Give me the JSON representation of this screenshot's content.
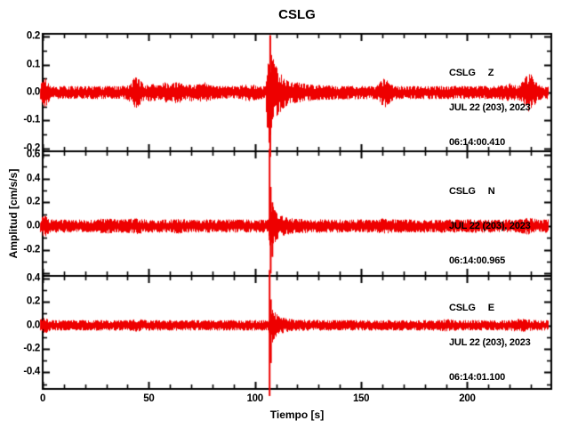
{
  "chart_data": {
    "type": "line",
    "subtype": "seismogram-3-component",
    "title": "CSLG",
    "xlabel": "Tiempo [s]",
    "ylabel": "Amplitud [cm/s/s]",
    "trace_color": "#ee0000",
    "axis_color": "#000000",
    "x_range": [
      0,
      239.6
    ],
    "x_ticks_major": [
      0,
      50,
      100,
      150,
      200
    ],
    "x_tick_labels": [
      "0",
      "50",
      "100",
      "150",
      "200"
    ],
    "x_minor_step": 10,
    "grid": false,
    "panels": [
      {
        "id": "Z",
        "station": "CSLG",
        "channel": "Z",
        "date_line": "JUL 22 (203), 2023",
        "time_line": "06:14:00.410",
        "ylim": [
          -0.21,
          0.21
        ],
        "y_major_step": 0.1,
        "y_minor_step": 0.05,
        "y_tick_values": [
          0.2,
          0.1,
          0.0,
          -0.1,
          -0.2
        ],
        "y_tick_labels": [
          "0.2",
          "0.1",
          "0.0",
          "-0.1",
          "-0.2"
        ],
        "noise_base": 0.021,
        "bumps": [
          {
            "t": 0.8,
            "s": 1.2,
            "a": 0.03
          },
          {
            "t": 44,
            "s": 2.2,
            "a": 0.028
          },
          {
            "t": 51,
            "s": 1.5,
            "a": 0.01
          },
          {
            "t": 57,
            "s": 1.5,
            "a": 0.012
          },
          {
            "t": 63,
            "s": 2.0,
            "a": 0.016
          },
          {
            "t": 70,
            "s": 1.5,
            "a": 0.008
          },
          {
            "t": 76,
            "s": 2.0,
            "a": 0.012
          },
          {
            "t": 97,
            "s": 2.5,
            "a": 0.007
          },
          {
            "t": 161,
            "s": 2.0,
            "a": 0.026
          },
          {
            "t": 219,
            "s": 2.0,
            "a": 0.01
          },
          {
            "t": 229,
            "s": 2.2,
            "a": 0.04
          }
        ],
        "event": {
          "onset": 104.8,
          "rise": 1.4,
          "amp": 0.185,
          "tau1": 3.2,
          "coda": 0.045,
          "tau2": 10
        },
        "spikes": [
          {
            "t": 107.2,
            "up": 0.205,
            "down": -0.23
          }
        ]
      },
      {
        "id": "N",
        "station": "CSLG",
        "channel": "N",
        "date_line": "JUL 22 (203), 2023",
        "time_line": "06:14:00.965",
        "ylim": [
          -0.42,
          0.63
        ],
        "y_major_step": 0.2,
        "y_minor_step": 0.1,
        "y_tick_values": [
          0.6,
          0.4,
          0.2,
          0.0,
          -0.2
        ],
        "y_tick_labels": [
          "0.6",
          "0.4",
          "0.2",
          "0.0",
          "-0.2"
        ],
        "noise_base": 0.05,
        "bumps": [
          {
            "t": 0.8,
            "s": 1.2,
            "a": 0.03
          },
          {
            "t": 30,
            "s": 3.0,
            "a": 0.008
          },
          {
            "t": 44,
            "s": 2.0,
            "a": 0.012
          },
          {
            "t": 63,
            "s": 2.0,
            "a": 0.008
          },
          {
            "t": 161,
            "s": 2.0,
            "a": 0.008
          },
          {
            "t": 229,
            "s": 2.5,
            "a": 0.014
          }
        ],
        "event": {
          "onset": 106.3,
          "rise": 0.7,
          "amp": 0.17,
          "tau1": 2.2,
          "coda": 0.045,
          "tau2": 7
        },
        "spikes": [
          {
            "t": 106.9,
            "up": 0.65,
            "down": -0.12
          },
          {
            "t": 107.4,
            "up": 0.33,
            "down": -0.4
          },
          {
            "t": 108.2,
            "up": 0.2,
            "down": -0.26
          }
        ]
      },
      {
        "id": "E",
        "station": "CSLG",
        "channel": "E",
        "date_line": "JUL 22 (203), 2023",
        "time_line": "06:14:01.100",
        "ylim": [
          -0.54,
          0.42
        ],
        "y_major_step": 0.2,
        "y_minor_step": 0.1,
        "y_tick_values": [
          0.4,
          0.2,
          0.0,
          -0.2,
          -0.4
        ],
        "y_tick_labels": [
          "0.4",
          "0.2",
          "0.0",
          "-0.2",
          "-0.4"
        ],
        "noise_base": 0.04,
        "bumps": [
          {
            "t": 0.8,
            "s": 1.2,
            "a": 0.025
          },
          {
            "t": 44,
            "s": 2.0,
            "a": 0.01
          },
          {
            "t": 190,
            "s": 3.0,
            "a": 0.008
          },
          {
            "t": 225,
            "s": 3.0,
            "a": 0.01
          }
        ],
        "event": {
          "onset": 106.3,
          "rise": 0.7,
          "amp": 0.14,
          "tau1": 2.2,
          "coda": 0.035,
          "tau2": 7
        },
        "spikes": [
          {
            "t": 106.9,
            "up": 0.47,
            "down": -0.6
          },
          {
            "t": 107.5,
            "up": 0.22,
            "down": -0.32
          }
        ]
      }
    ]
  }
}
